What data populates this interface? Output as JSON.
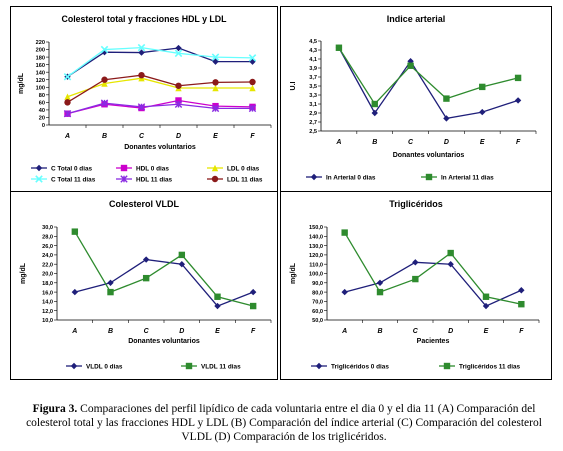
{
  "caption": {
    "label": "Figura 3.",
    "text": "Comparaciones del perfil lipídico de cada voluntaria entre el dia 0 y el dia 11 (A) Comparación del colesterol total y las fracciones HDL y LDL (B) Comparación del índice arterial (C) Comparación del colesterol VLDL (D) Comparación de los triglicéridos."
  },
  "chart_data": [
    {
      "type": "line",
      "title": "Colesterol total y fracciones HDL y LDL",
      "xlabel": "Donantes voluntarios",
      "ylabel": "mg/dL",
      "categories": [
        "A",
        "B",
        "C",
        "D",
        "E",
        "F"
      ],
      "ylim": [
        0,
        220
      ],
      "yticks": [
        "0",
        "20",
        "40",
        "60",
        "80",
        "100",
        "120",
        "140",
        "160",
        "180",
        "200",
        "220"
      ],
      "legend_position": "bottom",
      "series": [
        {
          "name": "C Total  0 dias",
          "color": "#1f1f7a",
          "marker": "diamond",
          "values": [
            128,
            193,
            192,
            204,
            168,
            168
          ]
        },
        {
          "name": "HDL  0 dias",
          "color": "#cc00cc",
          "marker": "square",
          "values": [
            30,
            55,
            45,
            65,
            50,
            48
          ]
        },
        {
          "name": "LDL  0 dias",
          "color": "#e6e600",
          "marker": "triangle",
          "values": [
            75,
            110,
            124,
            98,
            98,
            98
          ]
        },
        {
          "name": "C Total 11 dias",
          "color": "#66ffff",
          "marker": "x",
          "values": [
            128,
            200,
            205,
            190,
            180,
            178
          ]
        },
        {
          "name": "HDL 11 dias",
          "color": "#8a2be2",
          "marker": "star",
          "values": [
            30,
            58,
            48,
            55,
            44,
            44
          ]
        },
        {
          "name": "LDL 11 dias",
          "color": "#8b1a1a",
          "marker": "circle",
          "values": [
            60,
            120,
            132,
            104,
            113,
            114
          ]
        }
      ]
    },
    {
      "type": "line",
      "title": "Indice arterial",
      "xlabel": "Donantes voluntarios",
      "ylabel": "U.I",
      "categories": [
        "A",
        "B",
        "C",
        "D",
        "E",
        "F"
      ],
      "ylim": [
        2.5,
        4.5
      ],
      "yticks": [
        "2,5",
        "2,7",
        "2,9",
        "3,1",
        "3,3",
        "3,5",
        "3,7",
        "3,9",
        "4,1",
        "4,3",
        "4,5"
      ],
      "legend_position": "bottom",
      "series": [
        {
          "name": "In  Arterial 0 dias",
          "color": "#1f1f7a",
          "marker": "diamond",
          "values": [
            4.35,
            2.9,
            4.05,
            2.78,
            2.92,
            3.18
          ]
        },
        {
          "name": "In  Arterial 11 dias",
          "color": "#2e8b2e",
          "marker": "square",
          "values": [
            4.35,
            3.1,
            3.95,
            3.22,
            3.48,
            3.68
          ]
        }
      ]
    },
    {
      "type": "line",
      "title": "Colesterol VLDL",
      "xlabel": "Donantes voluntarios",
      "ylabel": "mg/dL",
      "categories": [
        "A",
        "B",
        "C",
        "D",
        "E",
        "F"
      ],
      "ylim": [
        10,
        30
      ],
      "yticks": [
        "10,0",
        "12,0",
        "14,0",
        "16,0",
        "18,0",
        "20,0",
        "22,0",
        "24,0",
        "26,0",
        "28,0",
        "30,0"
      ],
      "legend_position": "bottom",
      "series": [
        {
          "name": "VLDL  0 dias",
          "color": "#1f1f7a",
          "marker": "diamond",
          "values": [
            16,
            18,
            23,
            22,
            13,
            16
          ]
        },
        {
          "name": "VLDL  11 dias",
          "color": "#2e8b2e",
          "marker": "square",
          "values": [
            29,
            16,
            19,
            24,
            15,
            13
          ]
        }
      ]
    },
    {
      "type": "line",
      "title": "Triglicéridos",
      "xlabel": "Pacientes",
      "ylabel": "mg/dL",
      "categories": [
        "A",
        "B",
        "C",
        "D",
        "E",
        "F"
      ],
      "ylim": [
        50,
        150
      ],
      "yticks": [
        "50,0",
        "60,0",
        "70,0",
        "80,0",
        "90,0",
        "100,0",
        "110,0",
        "120,0",
        "130,0",
        "140,0",
        "150,0"
      ],
      "legend_position": "bottom",
      "series": [
        {
          "name": "Triglicéridos  0 dias",
          "color": "#1f1f7a",
          "marker": "diamond",
          "values": [
            80,
            90,
            112,
            110,
            65,
            82
          ]
        },
        {
          "name": "Triglicéridos  11 dias",
          "color": "#2e8b2e",
          "marker": "square",
          "values": [
            144,
            80,
            94,
            122,
            75,
            67
          ]
        }
      ]
    }
  ]
}
